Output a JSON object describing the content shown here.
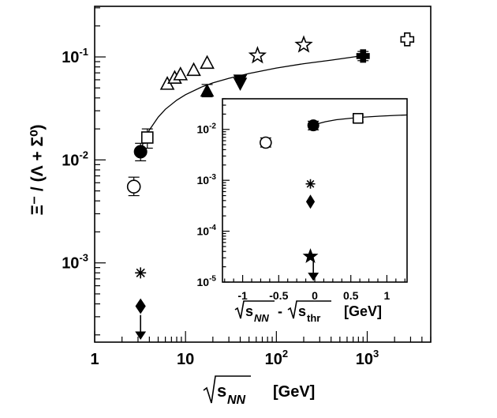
{
  "chart_data": [
    {
      "type": "scatter",
      "title": "",
      "xlabel_prefix": "s",
      "xlabel_sub": "NN",
      "xlabel_unit": "[GeV]",
      "ylabel": "Ξ⁻ / (Λ + Σ⁰)",
      "xscale": "log",
      "yscale": "log",
      "xlim": [
        1,
        5000
      ],
      "ylim": [
        0.00017,
        0.31
      ],
      "xticks": [
        {
          "value": 1,
          "label": "1"
        },
        {
          "value": 10,
          "label": "10"
        },
        {
          "value": 100,
          "label": "10^2"
        },
        {
          "value": 1000,
          "label": "10^3"
        }
      ],
      "yticks": [
        {
          "value": 0.001,
          "label": "10^-3"
        },
        {
          "value": 0.01,
          "label": "10^-2"
        },
        {
          "value": 0.1,
          "label": "10^-1"
        }
      ],
      "series": [
        {
          "name": "open-circle",
          "marker": "open-circle",
          "points": [
            {
              "x": 2.7,
              "y": 0.0055,
              "err": [
                0.0045,
                0.0068
              ]
            }
          ]
        },
        {
          "name": "filled-circle",
          "marker": "filled-circle",
          "points": [
            {
              "x": 3.2,
              "y": 0.012,
              "err": [
                0.0098,
                0.0145
              ]
            }
          ]
        },
        {
          "name": "open-square",
          "marker": "open-square",
          "points": [
            {
              "x": 3.8,
              "y": 0.0165,
              "err": [
                0.013,
                0.02
              ]
            }
          ]
        },
        {
          "name": "asterisk",
          "marker": "asterisk",
          "points": [
            {
              "x": 3.2,
              "y": 0.0008
            }
          ]
        },
        {
          "name": "filled-diamond",
          "marker": "filled-diamond",
          "points": [
            {
              "x": 3.2,
              "y": 0.00038
            }
          ]
        },
        {
          "name": "upper-limit-arrow",
          "marker": "arrow-down",
          "points": [
            {
              "x": 3.2,
              "y": 0.00021
            }
          ]
        },
        {
          "name": "open-triangle",
          "marker": "open-triangle",
          "points": [
            {
              "x": 6.3,
              "y": 0.055
            },
            {
              "x": 7.6,
              "y": 0.063
            },
            {
              "x": 8.8,
              "y": 0.068
            },
            {
              "x": 12.3,
              "y": 0.075
            },
            {
              "x": 17.3,
              "y": 0.088
            }
          ]
        },
        {
          "name": "filled-triangle",
          "marker": "filled-triangle",
          "points": [
            {
              "x": 17.3,
              "y": 0.047,
              "err": [
                0.041,
                0.054
              ]
            }
          ]
        },
        {
          "name": "filled-triangle-down",
          "marker": "filled-triangle-down",
          "points": [
            {
              "x": 40,
              "y": 0.055
            },
            {
              "x": 40,
              "y": 0.059
            }
          ]
        },
        {
          "name": "open-star",
          "marker": "open-star",
          "points": [
            {
              "x": 62,
              "y": 0.103
            },
            {
              "x": 200,
              "y": 0.131
            }
          ]
        },
        {
          "name": "filled-cross",
          "marker": "filled-cross",
          "points": [
            {
              "x": 900,
              "y": 0.102,
              "err": [
                0.092,
                0.113
              ]
            }
          ]
        },
        {
          "name": "open-cross",
          "marker": "open-cross",
          "points": [
            {
              "x": 2760,
              "y": 0.148
            }
          ]
        }
      ],
      "curve": {
        "name": "fit",
        "x": [
          3.0,
          3.5,
          4.0,
          5,
          6,
          8,
          10,
          15,
          20,
          30,
          50,
          100,
          200,
          400,
          900
        ],
        "y": [
          0.0105,
          0.0155,
          0.0195,
          0.026,
          0.031,
          0.038,
          0.043,
          0.051,
          0.056,
          0.062,
          0.069,
          0.078,
          0.086,
          0.093,
          0.103
        ]
      }
    },
    {
      "type": "scatter",
      "title": "inset",
      "xlabel_a_prefix": "s",
      "xlabel_a_sub": "NN",
      "xlabel_minus": "-",
      "xlabel_b_prefix": "s",
      "xlabel_b_sub": "thr",
      "xlabel_unit": "[GeV]",
      "xscale": "linear",
      "yscale": "log",
      "xlim": [
        -1.28,
        1.28
      ],
      "ylim": [
        1e-05,
        0.04
      ],
      "xticks": [
        {
          "value": -1,
          "label": "-1"
        },
        {
          "value": -0.5,
          "label": "-0.5"
        },
        {
          "value": 0,
          "label": "0"
        },
        {
          "value": 0.5,
          "label": "0.5"
        },
        {
          "value": 1,
          "label": "1"
        }
      ],
      "yticks": [
        {
          "value": 1e-05,
          "label": "10^-5"
        },
        {
          "value": 0.0001,
          "label": "10^-4"
        },
        {
          "value": 0.001,
          "label": "10^-3"
        },
        {
          "value": 0.01,
          "label": "10^-2"
        }
      ],
      "series": [
        {
          "name": "open-circle",
          "marker": "open-circle",
          "points": [
            {
              "x": -0.68,
              "y": 0.0055,
              "err": [
                0.0045,
                0.0068
              ]
            }
          ]
        },
        {
          "name": "filled-circle",
          "marker": "filled-circle",
          "points": [
            {
              "x": -0.02,
              "y": 0.012,
              "err": [
                0.0098,
                0.0145
              ]
            }
          ]
        },
        {
          "name": "open-square",
          "marker": "open-square",
          "points": [
            {
              "x": 0.6,
              "y": 0.0165,
              "err": [
                0.014,
                0.019
              ]
            }
          ]
        },
        {
          "name": "asterisk",
          "marker": "asterisk",
          "points": [
            {
              "x": -0.06,
              "y": 0.00085
            }
          ]
        },
        {
          "name": "filled-diamond",
          "marker": "filled-diamond",
          "points": [
            {
              "x": -0.06,
              "y": 0.00038
            }
          ]
        },
        {
          "name": "filled-star",
          "marker": "filled-star",
          "points": [
            {
              "x": -0.06,
              "y": 3.2e-05
            }
          ]
        },
        {
          "name": "upper-limit-arrow",
          "marker": "arrow-down",
          "points": [
            {
              "x": -0.02,
              "y": 1.45e-05
            }
          ]
        }
      ],
      "curve": {
        "name": "fit",
        "x": [
          -0.02,
          0.05,
          0.15,
          0.3,
          0.5,
          0.7,
          0.9,
          1.1,
          1.28
        ],
        "y": [
          0.0118,
          0.013,
          0.0142,
          0.0155,
          0.0166,
          0.0175,
          0.0182,
          0.0188,
          0.0192
        ]
      }
    }
  ]
}
